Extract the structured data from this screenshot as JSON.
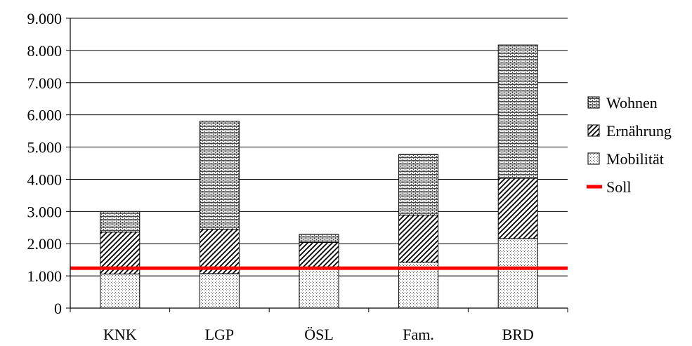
{
  "chart_data": {
    "type": "bar",
    "stacked": true,
    "title": "",
    "xlabel": "",
    "ylabel": "",
    "categories": [
      "KNK",
      "LGP",
      "ÖSL",
      "Fam.",
      "BRD"
    ],
    "series": [
      {
        "name": "Mobilität",
        "pattern": "dots",
        "values": [
          1060,
          1070,
          1260,
          1430,
          2160
        ]
      },
      {
        "name": "Ernährung",
        "pattern": "diagonal",
        "values": [
          1300,
          1380,
          780,
          1460,
          1870
        ]
      },
      {
        "name": "Wohnen",
        "pattern": "brick",
        "values": [
          640,
          3350,
          250,
          1880,
          4140
        ]
      }
    ],
    "reference_line": {
      "name": "Soll",
      "value": 1240,
      "color": "#ff0000"
    },
    "ylim": [
      0,
      9000
    ],
    "yticks": [
      "0",
      "1.000",
      "2.000",
      "3.000",
      "4.000",
      "5.000",
      "6.000",
      "7.000",
      "8.000",
      "9.000"
    ],
    "grid": true,
    "legend": {
      "position": "right",
      "items": [
        "Wohnen",
        "Ernährung",
        "Mobilität",
        "Soll"
      ]
    }
  }
}
